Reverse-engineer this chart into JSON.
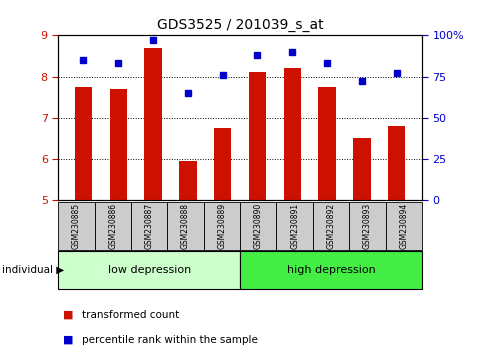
{
  "title": "GDS3525 / 201039_s_at",
  "samples": [
    "GSM230885",
    "GSM230886",
    "GSM230887",
    "GSM230888",
    "GSM230889",
    "GSM230890",
    "GSM230891",
    "GSM230892",
    "GSM230893",
    "GSM230894"
  ],
  "transformed_count": [
    7.75,
    7.7,
    8.7,
    5.95,
    6.75,
    8.1,
    8.2,
    7.75,
    6.5,
    6.8
  ],
  "percentile_rank": [
    85,
    83,
    97,
    65,
    76,
    88,
    90,
    83,
    72,
    77
  ],
  "bar_color": "#cc1100",
  "dot_color": "#0000cc",
  "ylim_left": [
    5,
    9
  ],
  "ylim_right": [
    0,
    100
  ],
  "yticks_left": [
    5,
    6,
    7,
    8,
    9
  ],
  "yticks_right": [
    0,
    25,
    50,
    75,
    100
  ],
  "yticklabels_right": [
    "0",
    "25",
    "50",
    "75",
    "100%"
  ],
  "groups": [
    {
      "label": "low depression",
      "indices": [
        0,
        1,
        2,
        3,
        4
      ],
      "color": "#ccffcc"
    },
    {
      "label": "high depression",
      "indices": [
        5,
        6,
        7,
        8,
        9
      ],
      "color": "#44ee44"
    }
  ],
  "legend_bar_label": "transformed count",
  "legend_dot_label": "percentile rank within the sample",
  "individual_label": "individual",
  "box_color": "#cccccc",
  "bg_color": "#ffffff"
}
